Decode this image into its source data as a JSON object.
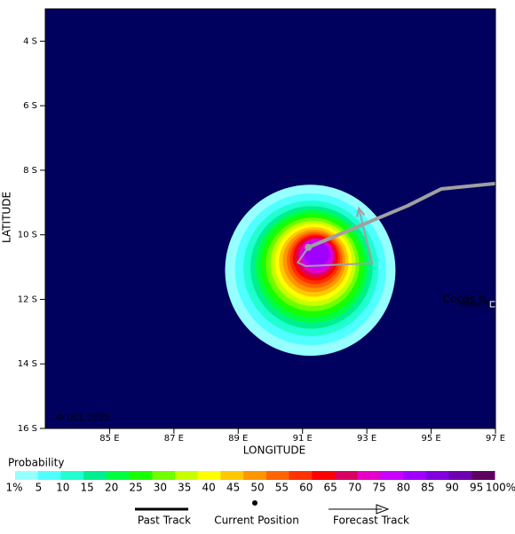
{
  "map": {
    "xlim": [
      83,
      97
    ],
    "ylim": [
      -16,
      -3
    ],
    "xticks": [
      {
        "value": 85,
        "label": "85 E"
      },
      {
        "value": 87,
        "label": "87 E"
      },
      {
        "value": 89,
        "label": "89 E"
      },
      {
        "value": 91,
        "label": "91 E"
      },
      {
        "value": 93,
        "label": "93 E"
      },
      {
        "value": 95,
        "label": "95 E"
      },
      {
        "value": 97,
        "label": "97 E"
      }
    ],
    "yticks": [
      {
        "value": -4,
        "label": "4 S"
      },
      {
        "value": -6,
        "label": "6 S"
      },
      {
        "value": -8,
        "label": "8 S"
      },
      {
        "value": -10,
        "label": "10 S"
      },
      {
        "value": -12,
        "label": "12 S"
      },
      {
        "value": -14,
        "label": "14 S"
      },
      {
        "value": -16,
        "label": "16 S"
      }
    ],
    "xlabel": "LONGITUDE",
    "ylabel": "LATITUDE",
    "background": "#00005e",
    "copyright": "© UCL 2025",
    "places": [
      {
        "name": "Cocos Is.",
        "lon": 96.1,
        "lat": -12.0,
        "color": "#00d800"
      },
      {
        "name": "Home Is.",
        "lon": 96.4,
        "lat": -12.15,
        "color": "#ffffff"
      }
    ],
    "plume": [
      {
        "level": 0,
        "lon": 91.24,
        "lat": -11.1,
        "radius": 2.65
      },
      {
        "level": 1,
        "lon": 91.25,
        "lat": -11.07,
        "radius": 2.35
      },
      {
        "level": 2,
        "lon": 91.26,
        "lat": -11.04,
        "radius": 2.1
      },
      {
        "level": 3,
        "lon": 91.28,
        "lat": -11.01,
        "radius": 1.9
      },
      {
        "level": 4,
        "lon": 91.29,
        "lat": -10.98,
        "radius": 1.75
      },
      {
        "level": 5,
        "lon": 91.3,
        "lat": -10.95,
        "radius": 1.6
      },
      {
        "level": 6,
        "lon": 91.31,
        "lat": -10.92,
        "radius": 1.45
      },
      {
        "level": 7,
        "lon": 91.33,
        "lat": -10.89,
        "radius": 1.32
      },
      {
        "level": 8,
        "lon": 91.34,
        "lat": -10.86,
        "radius": 1.2
      },
      {
        "level": 9,
        "lon": 91.35,
        "lat": -10.84,
        "radius": 1.08
      },
      {
        "level": 10,
        "lon": 91.36,
        "lat": -10.81,
        "radius": 0.97
      },
      {
        "level": 11,
        "lon": 91.38,
        "lat": -10.78,
        "radius": 0.87
      },
      {
        "level": 12,
        "lon": 91.39,
        "lat": -10.75,
        "radius": 0.78
      },
      {
        "level": 13,
        "lon": 91.4,
        "lat": -10.72,
        "radius": 0.7
      },
      {
        "level": 14,
        "lon": 91.41,
        "lat": -10.69,
        "radius": 0.62
      },
      {
        "level": 15,
        "lon": 91.43,
        "lat": -10.66,
        "radius": 0.54
      },
      {
        "level": 16,
        "lon": 91.44,
        "lat": -10.63,
        "radius": 0.46
      },
      {
        "level": 17,
        "lon": 91.45,
        "lat": -10.6,
        "radius": 0.38
      }
    ],
    "past_track": {
      "lon": [
        97.02,
        95.31,
        94.27,
        91.18
      ],
      "lat": [
        -8.41,
        -8.58,
        -9.1,
        -10.39
      ],
      "color": "#a0a0a0"
    },
    "forecast_track": {
      "lon": [
        91.18,
        90.85,
        91.1,
        93.17,
        92.75
      ],
      "lat": [
        -10.39,
        -10.86,
        -10.97,
        -10.88,
        -9.18
      ],
      "color": "#a0a0a0"
    },
    "current_position": {
      "lon": 91.18,
      "lat": -10.39
    }
  },
  "legend": {
    "title": "Probability",
    "items": [
      {
        "value": 1,
        "label": "1%",
        "color": "#96ffff"
      },
      {
        "value": 5,
        "label": "5",
        "color": "#50ffff"
      },
      {
        "value": 10,
        "label": "10",
        "color": "#20ffd0"
      },
      {
        "value": 15,
        "label": "15",
        "color": "#00f090"
      },
      {
        "value": 20,
        "label": "20",
        "color": "#00ff40"
      },
      {
        "value": 25,
        "label": "25",
        "color": "#18ff00"
      },
      {
        "value": 30,
        "label": "30",
        "color": "#70ff00"
      },
      {
        "value": 35,
        "label": "35",
        "color": "#c8ff00"
      },
      {
        "value": 40,
        "label": "40",
        "color": "#ffff00"
      },
      {
        "value": 45,
        "label": "45",
        "color": "#ffc800"
      },
      {
        "value": 50,
        "label": "50",
        "color": "#ff9600"
      },
      {
        "value": 55,
        "label": "55",
        "color": "#ff6400"
      },
      {
        "value": 60,
        "label": "60",
        "color": "#ff3200"
      },
      {
        "value": 65,
        "label": "65",
        "color": "#ff0000"
      },
      {
        "value": 70,
        "label": "70",
        "color": "#d80060"
      },
      {
        "value": 75,
        "label": "75",
        "color": "#e600c8"
      },
      {
        "value": 80,
        "label": "80",
        "color": "#c800ff"
      },
      {
        "value": 85,
        "label": "85",
        "color": "#a000ff"
      },
      {
        "value": 90,
        "label": "90",
        "color": "#8200e0"
      },
      {
        "value": 95,
        "label": "95",
        "color": "#7000b0"
      },
      {
        "value": 100,
        "label": "100%",
        "color": "#600060"
      }
    ],
    "past_track": "Past Track",
    "current_position": "Current Position",
    "forecast_track": "Forecast Track"
  }
}
